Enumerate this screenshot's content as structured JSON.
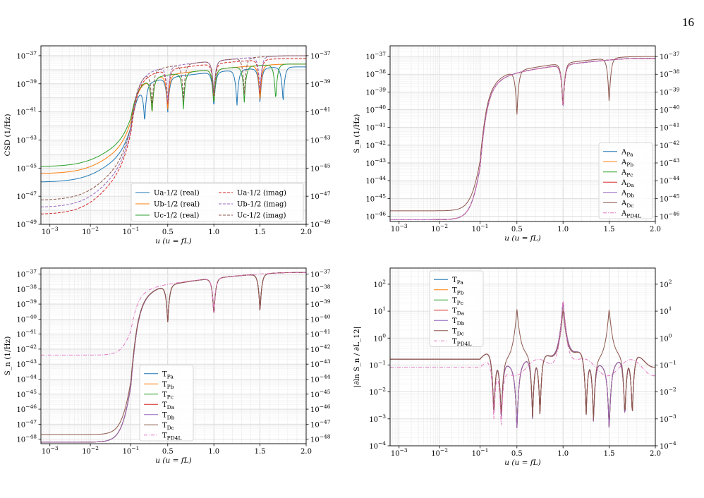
{
  "page_number": "16",
  "chart_data": [
    {
      "type": "line",
      "id": "csd",
      "ylabel": "CSD (1/Hz)",
      "xlabel": "u (u = fL)",
      "xscale": "piecewise-log-linear",
      "x_log_range": [
        0.0006,
        0.1
      ],
      "x_lin_range": [
        0.1,
        2.0
      ],
      "yscale": "log",
      "ylim_exp": [
        -49,
        -36.3
      ],
      "y_tick_exps": [
        -49,
        -47,
        -45,
        -43,
        -41,
        -39,
        -37
      ],
      "x_ticks": [
        "10^-3",
        "10^-2",
        "10^-1",
        "0.5",
        "1.0",
        "1.5",
        "2.0"
      ],
      "grid": true,
      "legend_position": "lower-right",
      "legend_columns": 2,
      "series": [
        {
          "name": "Ua-1/2 (real)",
          "color": "#1f77b4",
          "dash": "solid",
          "low_exp": -46.0,
          "ramp_exp": -43.5,
          "peak_exp": -37.8,
          "nulls": [
            0.25,
            0.5,
            1.0,
            1.25,
            1.5,
            1.75
          ]
        },
        {
          "name": "Ub-1/2 (real)",
          "color": "#ff7f0e",
          "dash": "solid",
          "low_exp": -45.4,
          "ramp_exp": -43.0,
          "peak_exp": -37.6,
          "nulls": [
            0.33,
            0.5,
            1.0,
            1.5
          ]
        },
        {
          "name": "Uc-1/2 (real)",
          "color": "#2ca02c",
          "dash": "solid",
          "low_exp": -44.9,
          "ramp_exp": -42.6,
          "peak_exp": -37.6,
          "nulls": [
            0.33,
            0.67,
            1.0,
            1.33,
            1.67
          ]
        },
        {
          "name": "Ua-1/2 (imag)",
          "color": "#d62728",
          "dash": "dashed",
          "low_exp": -48.3,
          "ramp_exp": -44.2,
          "peak_exp": -37.2,
          "nulls": [
            0.5,
            1.0,
            1.5
          ]
        },
        {
          "name": "Ub-1/2 (imag)",
          "color": "#9467bd",
          "dash": "dashed",
          "low_exp": -47.8,
          "ramp_exp": -44.0,
          "peak_exp": -37.0,
          "nulls": [
            0.5,
            1.0,
            1.5
          ]
        },
        {
          "name": "Uc-1/2 (imag)",
          "color": "#8c564b",
          "dash": "dashed",
          "low_exp": -47.3,
          "ramp_exp": -43.7,
          "peak_exp": -37.0,
          "nulls": [
            0.33,
            0.67,
            1.0,
            1.33
          ]
        }
      ]
    },
    {
      "type": "line",
      "id": "acc",
      "ylabel": "S_n (1/Hz)",
      "xlabel": "u (u = fL)",
      "xscale": "piecewise-log-linear",
      "x_log_range": [
        0.0006,
        0.1
      ],
      "x_lin_range": [
        0.1,
        2.0
      ],
      "yscale": "log",
      "ylim_exp": [
        -46.3,
        -36.4
      ],
      "y_tick_exps": [
        -46,
        -45,
        -44,
        -43,
        -42,
        -41,
        -40,
        -39,
        -38,
        -37
      ],
      "x_ticks": [
        "10^-3",
        "10^-2",
        "10^-1",
        "0.5",
        "1.0",
        "1.5",
        "2.0"
      ],
      "grid": true,
      "legend_position": "lower-right",
      "legend_columns": 1,
      "series": [
        {
          "name": "A_Pa",
          "color": "#1f77b4",
          "dash": "solid",
          "low_exp": -46.2,
          "peak_exp": -37.1,
          "nulls": [
            1.0
          ]
        },
        {
          "name": "A_Pb",
          "color": "#ff7f0e",
          "dash": "solid",
          "low_exp": -46.2,
          "peak_exp": -37.1,
          "nulls": [
            1.0
          ]
        },
        {
          "name": "A_Pc",
          "color": "#2ca02c",
          "dash": "solid",
          "low_exp": -46.2,
          "peak_exp": -37.1,
          "nulls": [
            1.0
          ]
        },
        {
          "name": "A_Da",
          "color": "#d62728",
          "dash": "solid",
          "low_exp": -46.2,
          "peak_exp": -37.1,
          "nulls": [
            1.0
          ]
        },
        {
          "name": "A_Db",
          "color": "#9467bd",
          "dash": "solid",
          "low_exp": -46.2,
          "peak_exp": -37.1,
          "nulls": [
            1.0
          ]
        },
        {
          "name": "A_Dc",
          "color": "#8c564b",
          "dash": "solid",
          "low_exp": -45.7,
          "peak_exp": -37.0,
          "nulls": [
            0.5,
            1.0,
            1.5
          ]
        },
        {
          "name": "A_PD4L",
          "color": "#e377c2",
          "dash": "dashdot",
          "low_exp": -46.2,
          "peak_exp": -37.1,
          "nulls": [
            1.0
          ]
        }
      ]
    },
    {
      "type": "line",
      "id": "test-mass",
      "ylabel": "S_n (1/Hz)",
      "xlabel": "u (u = fL)",
      "xscale": "piecewise-log-linear",
      "x_log_range": [
        0.0006,
        0.1
      ],
      "x_lin_range": [
        0.1,
        2.0
      ],
      "yscale": "log",
      "ylim_exp": [
        -48.3,
        -36.6
      ],
      "y_tick_exps": [
        -48,
        -47,
        -46,
        -45,
        -44,
        -43,
        -42,
        -41,
        -40,
        -39,
        -38,
        -37
      ],
      "x_ticks": [
        "10^-3",
        "10^-2",
        "10^-1",
        "0.5",
        "1.0",
        "1.5",
        "2.0"
      ],
      "grid": true,
      "legend_position": "lower-center",
      "legend_columns": 1,
      "series": [
        {
          "name": "T_Pa",
          "color": "#1f77b4",
          "dash": "solid",
          "low_exp": -48.2,
          "peak_exp": -36.9,
          "nulls": [
            0.5,
            1.0,
            1.5
          ]
        },
        {
          "name": "T_Pb",
          "color": "#ff7f0e",
          "dash": "solid",
          "low_exp": -48.2,
          "peak_exp": -36.9,
          "nulls": [
            0.5,
            1.0,
            1.5
          ]
        },
        {
          "name": "T_Pc",
          "color": "#2ca02c",
          "dash": "solid",
          "low_exp": -48.2,
          "peak_exp": -36.9,
          "nulls": [
            0.5,
            1.0,
            1.5
          ]
        },
        {
          "name": "T_Da",
          "color": "#d62728",
          "dash": "solid",
          "low_exp": -48.2,
          "peak_exp": -36.9,
          "nulls": [
            0.5,
            1.0,
            1.5
          ]
        },
        {
          "name": "T_Db",
          "color": "#9467bd",
          "dash": "solid",
          "low_exp": -48.2,
          "peak_exp": -36.9,
          "nulls": [
            0.5,
            1.0,
            1.5
          ]
        },
        {
          "name": "T_Dc",
          "color": "#8c564b",
          "dash": "solid",
          "low_exp": -47.7,
          "peak_exp": -36.9,
          "nulls": [
            0.5,
            1.0,
            1.5
          ]
        },
        {
          "name": "T_PD4L",
          "color": "#e377c2",
          "dash": "dashdot",
          "low_exp": -42.4,
          "peak_exp": -36.9,
          "nulls": [
            1.0
          ]
        }
      ]
    },
    {
      "type": "line",
      "id": "derivative",
      "ylabel": "|∂ln S_n / ∂L_12|",
      "xlabel": "u (u = fL)",
      "xscale": "piecewise-log-linear",
      "x_log_range": [
        0.0006,
        0.1
      ],
      "x_lin_range": [
        0.1,
        2.0
      ],
      "yscale": "log",
      "ylim_exp": [
        -4,
        2.6
      ],
      "y_tick_exps": [
        -4,
        -3,
        -2,
        -1,
        0,
        1,
        2
      ],
      "x_ticks": [
        "10^-3",
        "10^-2",
        "10^-1",
        "0.5",
        "1.0",
        "1.5",
        "2.0"
      ],
      "grid": true,
      "legend_position": "upper-left",
      "legend_columns": 1,
      "series": [
        {
          "name": "T_Pa",
          "color": "#1f77b4",
          "dash": "solid",
          "low_exp": -0.78,
          "peak_exp": 1.7,
          "spikes": [
            1.0
          ],
          "dips": [
            0.25,
            0.33,
            0.5,
            0.67,
            0.75,
            1.25,
            1.33,
            1.5,
            1.67,
            1.75
          ]
        },
        {
          "name": "T_Pb",
          "color": "#ff7f0e",
          "dash": "solid",
          "low_exp": -0.78,
          "peak_exp": 1.7,
          "spikes": [
            1.0
          ],
          "dips": [
            0.25,
            0.33,
            0.5,
            0.67,
            0.75,
            1.25,
            1.33,
            1.5,
            1.67,
            1.75
          ]
        },
        {
          "name": "T_Pc",
          "color": "#2ca02c",
          "dash": "solid",
          "low_exp": -0.78,
          "peak_exp": 1.7,
          "spikes": [
            1.0
          ],
          "dips": [
            0.25,
            0.33,
            0.5,
            0.67,
            0.75,
            1.25,
            1.33,
            1.5,
            1.67,
            1.75
          ]
        },
        {
          "name": "T_Da",
          "color": "#d62728",
          "dash": "solid",
          "low_exp": -0.78,
          "peak_exp": 1.7,
          "spikes": [
            1.0
          ],
          "dips": [
            0.25,
            0.33,
            0.5,
            0.67,
            0.75,
            1.25,
            1.33,
            1.5,
            1.67,
            1.75
          ]
        },
        {
          "name": "T_Db",
          "color": "#9467bd",
          "dash": "solid",
          "low_exp": -0.78,
          "peak_exp": 1.7,
          "spikes": [
            1.0
          ],
          "dips": [
            0.25,
            0.33,
            0.5,
            0.67,
            0.75,
            1.25,
            1.33,
            1.5,
            1.67,
            1.75
          ]
        },
        {
          "name": "T_Dc",
          "color": "#8c564b",
          "dash": "solid",
          "low_exp": -0.78,
          "peak_exp": 1.4,
          "spikes": [
            0.5,
            1.0,
            1.5
          ],
          "dips": [
            0.25,
            0.33,
            0.67,
            0.75,
            1.25,
            1.33,
            1.67,
            1.75
          ]
        },
        {
          "name": "T_PD4L",
          "color": "#e377c2",
          "dash": "dashdot",
          "low_exp": -1.1,
          "peak_exp": 1.8,
          "spikes": [
            1.0
          ],
          "dips": [
            0.25,
            0.33
          ]
        }
      ]
    }
  ]
}
